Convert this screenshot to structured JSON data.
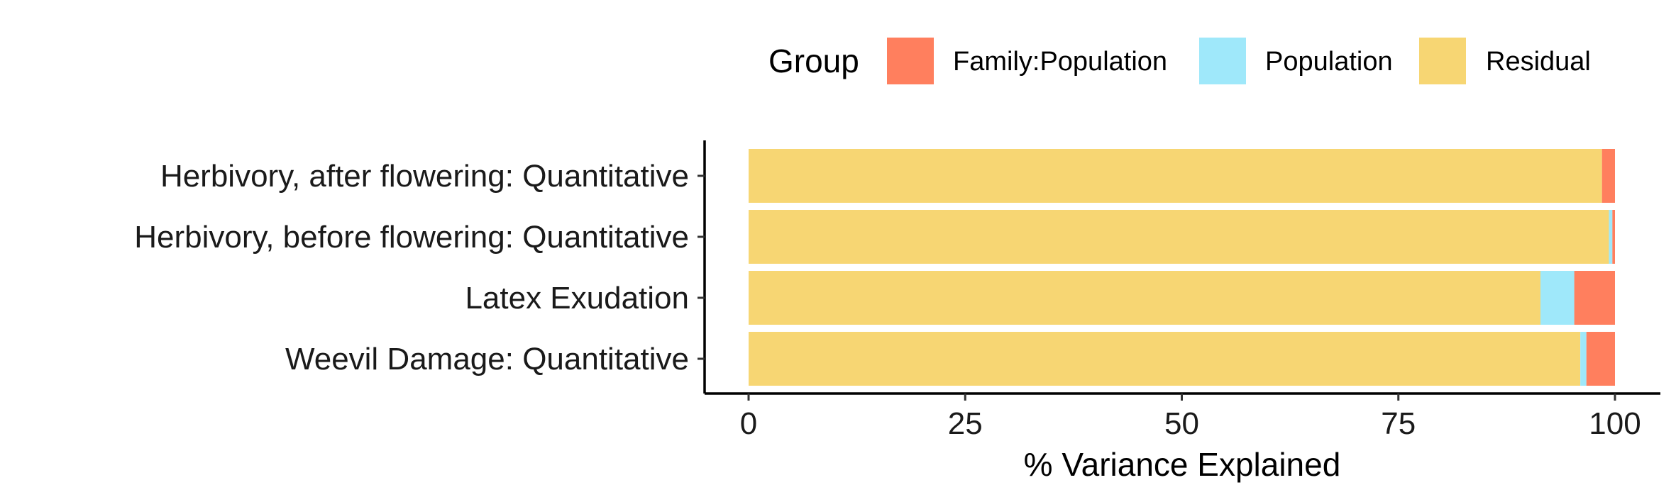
{
  "chart_data": {
    "type": "bar",
    "orientation": "horizontal",
    "stacked": true,
    "categories": [
      "Herbivory, after flowering: Quantitative",
      "Herbivory, before flowering: Quantitative",
      "Latex Exudation",
      "Weevil Damage: Quantitative"
    ],
    "series": [
      {
        "name": "Residual",
        "color": "#F7D673",
        "values": [
          98.5,
          99.3,
          91.4,
          96.0
        ]
      },
      {
        "name": "Population",
        "color": "#9FE8FA",
        "values": [
          0.0,
          0.4,
          3.9,
          0.7
        ]
      },
      {
        "name": "Family:Population",
        "color": "#FF7F5E",
        "values": [
          1.5,
          0.3,
          4.7,
          3.3
        ]
      }
    ],
    "xlabel": "% Variance Explained",
    "ylabel": "",
    "xlim": [
      0,
      100
    ],
    "xticks": [
      "0",
      "25",
      "50",
      "75",
      "100"
    ],
    "xtick_values": [
      0,
      25,
      50,
      75,
      100
    ],
    "grid": false,
    "legend": {
      "title": "Group",
      "placement": "top",
      "entries": [
        {
          "label": "Family:Population",
          "color": "#FF7F5E"
        },
        {
          "label": "Population",
          "color": "#9FE8FA"
        },
        {
          "label": "Residual",
          "color": "#F7D673"
        }
      ]
    }
  }
}
